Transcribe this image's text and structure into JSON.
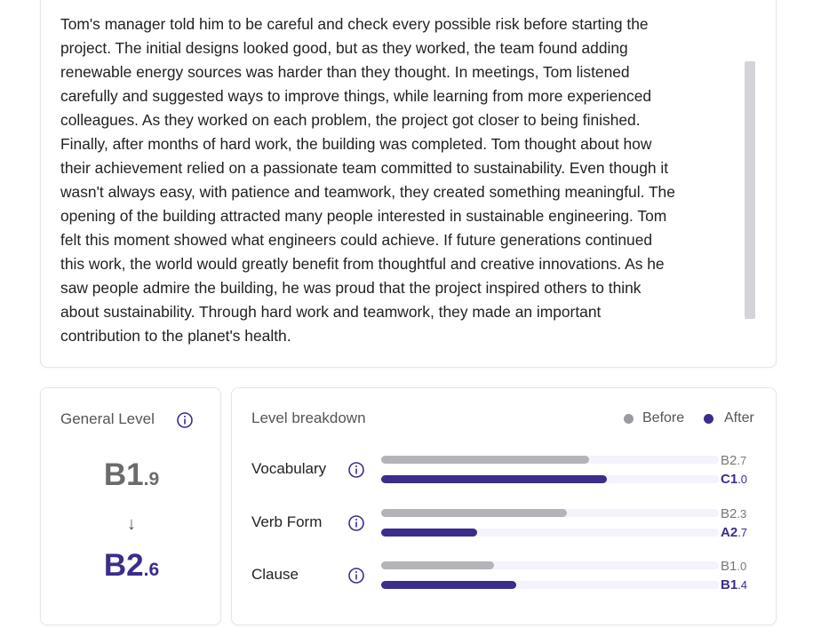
{
  "text_card": {
    "lines": [
      "Tom's manager told him to be careful and check every possible risk before starting the",
      "project. The initial designs looked good, but as they worked, the team found adding",
      "renewable energy sources was harder than they thought. In meetings, Tom listened",
      "carefully and suggested ways to improve things, while learning from more experienced",
      "colleagues. As they worked on each problem, the project got closer to being finished.",
      "Finally, after months of hard work, the building was completed. Tom thought about how",
      "their achievement relied on a passionate team committed to sustainability. Even though it",
      "wasn't always easy, with patience and teamwork, they created something meaningful. The",
      "opening of the building attracted many people interested in sustainable engineering. Tom",
      "felt this moment showed what engineers could achieve. If future generations continued",
      "this work, the world would greatly benefit from thoughtful and creative innovations. As he",
      "saw people admire the building, he was proud that the project inspired others to think",
      "about sustainability. Through hard work and teamwork, they made an important",
      "contribution to the planet's health."
    ]
  },
  "general_level": {
    "title": "General Level",
    "before": {
      "main": "B1",
      "decimal": ".9"
    },
    "arrow": "↓",
    "after": {
      "main": "B2",
      "decimal": ".6"
    }
  },
  "breakdown": {
    "title": "Level breakdown",
    "legend": {
      "before": "Before",
      "after": "After"
    },
    "rows": [
      {
        "label": "Vocabulary",
        "before": {
          "main": "B2",
          "decimal": ".7"
        },
        "after": {
          "main": "C1",
          "decimal": ".0"
        }
      },
      {
        "label": "Verb Form",
        "before": {
          "main": "B2",
          "decimal": ".3"
        },
        "after": {
          "main": "A2",
          "decimal": ".7"
        }
      },
      {
        "label": "Clause",
        "before": {
          "main": "B1",
          "decimal": ".0"
        },
        "after": {
          "main": "B1",
          "decimal": ".4"
        }
      }
    ]
  }
}
